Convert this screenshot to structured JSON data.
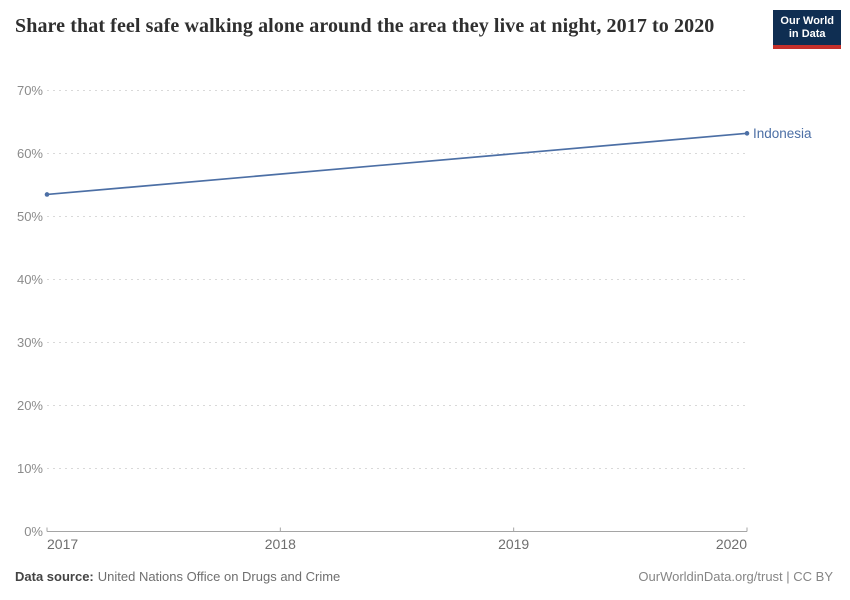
{
  "header": {
    "title": "Share that feel safe walking alone around the area they live at night, 2017 to 2020",
    "logo": {
      "line1": "Our World",
      "line2": "in Data"
    }
  },
  "chart_data": {
    "type": "line",
    "title": "Share that feel safe walking alone around the area they live at night, 2017 to 2020",
    "x": [
      2017,
      2020
    ],
    "series": [
      {
        "name": "Indonesia",
        "values": [
          53.5,
          63.2
        ],
        "color": "#4C6FA5"
      }
    ],
    "xticks": [
      2017,
      2018,
      2019,
      2020
    ],
    "yticks": [
      0,
      10,
      20,
      30,
      40,
      50,
      60,
      70
    ],
    "ytick_suffix": "%",
    "xlim": [
      2017,
      2020
    ],
    "ylim": [
      0,
      70
    ],
    "grid": "horizontal-dashed",
    "legend_position": "line-end-label"
  },
  "footer": {
    "source_label": "Data source:",
    "source_value": "United Nations Office on Drugs and Crime",
    "rights": "OurWorldinData.org/trust | CC BY"
  },
  "colors": {
    "line": "#4C6FA5",
    "grid": "#d9d9d9",
    "axis": "#a5a5a5",
    "ytick_label": "#8b8b8b",
    "xtick_label": "#6e6e6e",
    "title_text": "#2f2f2f",
    "logo_bg": "#0F2E52",
    "logo_accent": "#C5302B",
    "logo_text": "#ffffff"
  }
}
